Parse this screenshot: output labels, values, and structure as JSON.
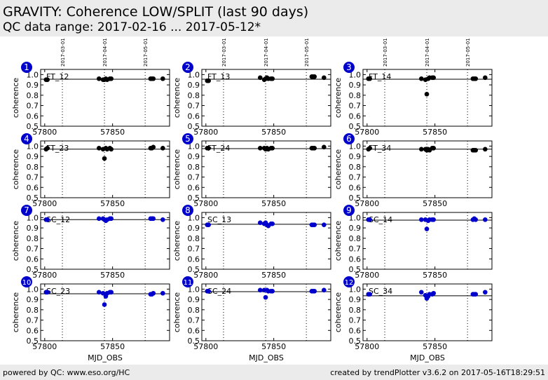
{
  "header": {
    "title": "GRAVITY: Coherence LOW/SPLIT (last 90 days)",
    "subtitle": "QC data range: 2017-02-16 ... 2017-05-12*"
  },
  "footer": {
    "left": "powered by QC: www.eso.org/HC",
    "right": "created by trendPlotter v3.6.2 on 2017-05-16T18:29:51"
  },
  "chart_data": {
    "type": "scatter",
    "xlabel": "MJD_OBS",
    "ylabel": "coherence",
    "xlim": [
      57797,
      57892
    ],
    "ylim": [
      0.5,
      1.05
    ],
    "xticks": [
      57800,
      57850
    ],
    "yticks": [
      0.5,
      0.6,
      0.7,
      0.8,
      0.9,
      1.0
    ],
    "date_markers": [
      {
        "label": "2017-03-01",
        "x": 57813
      },
      {
        "label": "2017-04-01",
        "x": 57844
      },
      {
        "label": "2017-05-01",
        "x": 57874
      }
    ],
    "colors": {
      "FT": "#000000",
      "SC": "#0000cc",
      "badge": "#0000cc"
    },
    "panels": [
      {
        "index": "1",
        "label": "FT_12",
        "color": "#000000",
        "ref": 0.955,
        "x": [
          57801,
          57802,
          57840,
          57843,
          57844,
          57845,
          57846,
          57848,
          57849,
          57878,
          57879,
          57880,
          57887
        ],
        "y": [
          0.95,
          0.95,
          0.96,
          0.95,
          0.95,
          0.96,
          0.95,
          0.96,
          0.96,
          0.96,
          0.96,
          0.96,
          0.96
        ]
      },
      {
        "index": "2",
        "label": "FT_13",
        "color": "#000000",
        "ref": 0.955,
        "x": [
          57801,
          57802,
          57840,
          57843,
          57844,
          57845,
          57846,
          57848,
          57849,
          57878,
          57879,
          57880,
          57887
        ],
        "y": [
          0.94,
          0.94,
          0.97,
          0.95,
          0.96,
          0.97,
          0.96,
          0.96,
          0.96,
          0.98,
          0.98,
          0.98,
          0.97
        ]
      },
      {
        "index": "3",
        "label": "FT_14",
        "color": "#000000",
        "ref": 0.955,
        "x": [
          57801,
          57802,
          57840,
          57843,
          57844,
          57845,
          57846,
          57848,
          57849,
          57878,
          57879,
          57880,
          57887
        ],
        "y": [
          0.96,
          0.96,
          0.96,
          0.95,
          0.81,
          0.96,
          0.97,
          0.97,
          0.97,
          0.96,
          0.96,
          0.96,
          0.97
        ]
      },
      {
        "index": "4",
        "label": "FT_23",
        "color": "#000000",
        "ref": 0.97,
        "x": [
          57801,
          57802,
          57840,
          57843,
          57844,
          57845,
          57846,
          57848,
          57849,
          57878,
          57879,
          57880,
          57887
        ],
        "y": [
          0.97,
          0.98,
          0.98,
          0.97,
          0.88,
          0.98,
          0.97,
          0.98,
          0.97,
          0.98,
          0.98,
          0.99,
          0.98
        ]
      },
      {
        "index": "5",
        "label": "FT_24",
        "color": "#000000",
        "ref": 0.975,
        "x": [
          57801,
          57802,
          57840,
          57843,
          57844,
          57845,
          57846,
          57848,
          57849,
          57878,
          57879,
          57880,
          57887
        ],
        "y": [
          0.98,
          0.98,
          0.98,
          0.98,
          0.97,
          0.98,
          0.97,
          0.98,
          0.98,
          0.98,
          0.98,
          0.98,
          0.99
        ]
      },
      {
        "index": "6",
        "label": "FT_34",
        "color": "#000000",
        "ref": 0.97,
        "x": [
          57801,
          57802,
          57840,
          57843,
          57844,
          57845,
          57846,
          57848,
          57849,
          57878,
          57879,
          57880,
          57887
        ],
        "y": [
          0.97,
          0.98,
          0.97,
          0.97,
          0.96,
          0.97,
          0.96,
          0.98,
          0.98,
          0.96,
          0.96,
          0.96,
          0.97
        ]
      },
      {
        "index": "7",
        "label": "SC_12",
        "color": "#0000cc",
        "ref": 0.98,
        "x": [
          57801,
          57802,
          57840,
          57843,
          57844,
          57845,
          57846,
          57848,
          57849,
          57878,
          57879,
          57880,
          57887
        ],
        "y": [
          0.98,
          0.98,
          0.99,
          0.99,
          0.98,
          0.97,
          0.98,
          0.99,
          0.99,
          0.99,
          0.99,
          0.99,
          0.98
        ]
      },
      {
        "index": "8",
        "label": "SC_13",
        "color": "#0000cc",
        "ref": 0.935,
        "x": [
          57801,
          57802,
          57840,
          57843,
          57844,
          57845,
          57846,
          57848,
          57849,
          57878,
          57879,
          57880,
          57887
        ],
        "y": [
          0.93,
          0.93,
          0.95,
          0.94,
          0.95,
          0.93,
          0.92,
          0.94,
          0.94,
          0.93,
          0.93,
          0.93,
          0.93
        ]
      },
      {
        "index": "9",
        "label": "SC_14",
        "color": "#0000cc",
        "ref": 0.975,
        "x": [
          57801,
          57802,
          57840,
          57843,
          57844,
          57845,
          57846,
          57848,
          57849,
          57878,
          57879,
          57880,
          57887
        ],
        "y": [
          0.98,
          0.98,
          0.98,
          0.98,
          0.89,
          0.97,
          0.98,
          0.98,
          0.98,
          0.98,
          0.99,
          0.98,
          0.98
        ]
      },
      {
        "index": "10",
        "label": "SC_23",
        "color": "#0000cc",
        "ref": 0.955,
        "x": [
          57801,
          57802,
          57840,
          57843,
          57844,
          57845,
          57846,
          57848,
          57849,
          57878,
          57879,
          57880,
          57887
        ],
        "y": [
          0.97,
          0.97,
          0.97,
          0.96,
          0.85,
          0.93,
          0.96,
          0.97,
          0.97,
          0.95,
          0.95,
          0.96,
          0.96
        ]
      },
      {
        "index": "11",
        "label": "SC_24",
        "color": "#0000cc",
        "ref": 0.975,
        "x": [
          57801,
          57802,
          57840,
          57843,
          57844,
          57845,
          57846,
          57848,
          57849,
          57878,
          57879,
          57880,
          57887
        ],
        "y": [
          0.98,
          0.98,
          0.99,
          0.99,
          0.92,
          0.99,
          0.98,
          0.98,
          0.98,
          0.98,
          0.98,
          0.98,
          0.99
        ]
      },
      {
        "index": "12",
        "label": "SC_34",
        "color": "#0000cc",
        "ref": 0.935,
        "x": [
          57801,
          57802,
          57840,
          57843,
          57844,
          57845,
          57846,
          57848,
          57849,
          57878,
          57879,
          57880,
          57887
        ],
        "y": [
          0.95,
          0.95,
          0.97,
          0.94,
          0.91,
          0.93,
          0.95,
          0.95,
          0.96,
          0.95,
          0.95,
          0.95,
          0.97
        ]
      }
    ]
  }
}
